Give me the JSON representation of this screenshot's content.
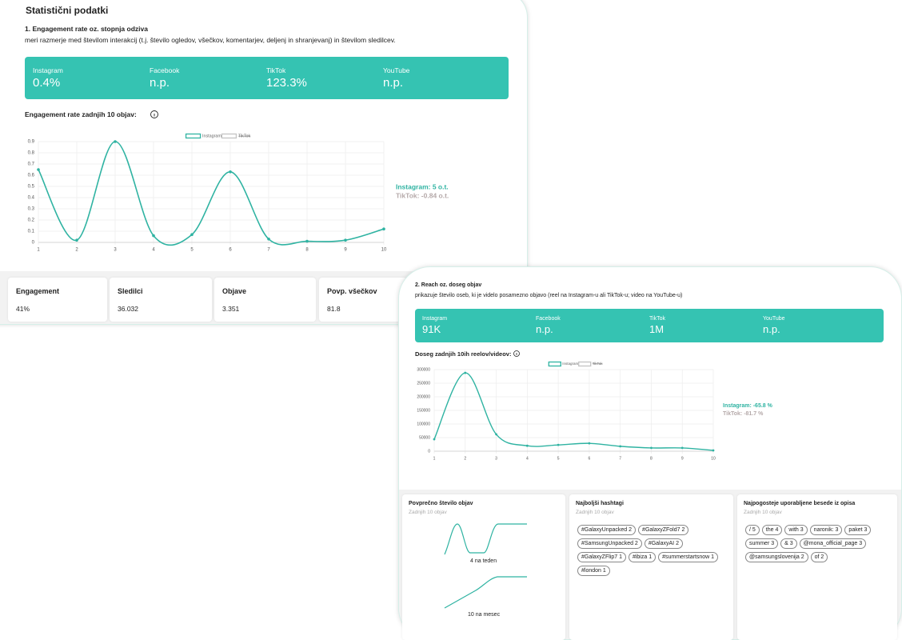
{
  "header": {
    "title": "Statistični podatki"
  },
  "engagement": {
    "heading": "1. Engagement rate oz. stopnja odziva",
    "description": "meri razmerje med številom interakcij (t.j. število ogledov, všečkov, komentarjev, deljenj in shranjevanj) in številom sledilcev.",
    "platforms": [
      {
        "label": "Instagram",
        "value": "0.4%"
      },
      {
        "label": "Facebook",
        "value": "n.p."
      },
      {
        "label": "TikTok",
        "value": "123.3%"
      },
      {
        "label": "YouTube",
        "value": "n.p."
      }
    ]
  },
  "summary": [
    {
      "label": "Engagement",
      "value": "41%"
    },
    {
      "label": "Sledilci",
      "value": "36.032"
    },
    {
      "label": "Objave",
      "value": "3.351"
    },
    {
      "label": "Povp. všečkov",
      "value": "81.8"
    }
  ],
  "reach": {
    "heading": "2. Reach oz. doseg objav",
    "description": "prikazuje število oseb, ki je videlo posamezno objavo (reel na Instagram-u ali TikTok-u; video na YouTube-u)",
    "platforms": [
      {
        "label": "Instagram",
        "value": "91K"
      },
      {
        "label": "Facebook",
        "value": "n.p."
      },
      {
        "label": "TikTok",
        "value": "1M"
      },
      {
        "label": "YouTube",
        "value": "n.p."
      }
    ]
  },
  "posting": {
    "title": "Povprečno število objav",
    "subtitle": "Zadnjih 10 objav",
    "weekly": "4 na teden",
    "monthly": "10 na mesec"
  },
  "hashtags": {
    "title": "Najboljši hashtagi",
    "subtitle": "Zadnjih 10 objav",
    "tags": [
      "#GalaxyUnpacked 2",
      "#GalaxyZFold7 2",
      "#SamsungUnpacked 2",
      "#GalaxyAI 2",
      "#GalaxyZFlip7 1",
      "#ibiza 1",
      "#summerstartsnow 1",
      "#london 1"
    ]
  },
  "words": {
    "title": "Najpogosteje uporabljene besede iz opisa",
    "subtitle": "Zadnjih 10 objav",
    "tags": [
      "/ 5",
      "the 4",
      "with 3",
      "naronik: 3",
      "paket 3",
      "summer 3",
      "& 3",
      "@mona_official_page 3",
      "@samsungslovenija 2",
      "of 2"
    ]
  },
  "chart_data": [
    {
      "type": "line",
      "title": "Engagement rate zadnjih 10 objav:",
      "x": [
        1,
        2,
        3,
        4,
        5,
        6,
        7,
        8,
        9,
        10
      ],
      "xlim": [
        1,
        10
      ],
      "xticks": [
        1,
        2,
        3,
        4,
        5,
        6,
        7,
        8,
        9,
        10
      ],
      "ylim": [
        0,
        0.9
      ],
      "yticks": [
        0,
        0.1,
        0.2,
        0.3,
        0.4,
        0.5,
        0.6,
        0.7,
        0.8,
        0.9
      ],
      "grid": true,
      "series": [
        {
          "name": "Instagram",
          "color": "#2fb3a2",
          "values": [
            0.65,
            0.02,
            0.9,
            0.06,
            0.07,
            0.63,
            0.03,
            0.01,
            0.02,
            0.12
          ]
        },
        {
          "name": "TikTok",
          "color": "#c4c4c4",
          "hidden": true,
          "values": [
            null,
            null,
            null,
            null,
            null,
            null,
            null,
            null,
            null,
            null
          ]
        }
      ],
      "annotations": [
        "Instagram: 5 o.t.",
        "TikTok: -0.84 o.t."
      ]
    },
    {
      "type": "line",
      "title": "Doseg zadnjih 10ih reelov/videov:",
      "x": [
        1,
        2,
        3,
        4,
        5,
        6,
        7,
        8,
        9,
        10
      ],
      "xlim": [
        1,
        10
      ],
      "xticks": [
        1,
        2,
        3,
        4,
        5,
        6,
        7,
        8,
        9,
        10
      ],
      "ylim": [
        0,
        300000
      ],
      "yticks": [
        0,
        50000,
        100000,
        150000,
        200000,
        250000,
        300000
      ],
      "grid": true,
      "series": [
        {
          "name": "Instagram",
          "color": "#2fb3a2",
          "values": [
            44000,
            288000,
            62000,
            20000,
            23000,
            29000,
            18000,
            12000,
            12000,
            3000
          ]
        },
        {
          "name": "TikTok",
          "color": "#c4c4c4",
          "hidden": true,
          "values": [
            null,
            null,
            null,
            null,
            null,
            null,
            null,
            null,
            null,
            null
          ]
        }
      ],
      "annotations": [
        "Instagram: -65.8 %",
        "TikTok: -81.7 %"
      ]
    }
  ]
}
